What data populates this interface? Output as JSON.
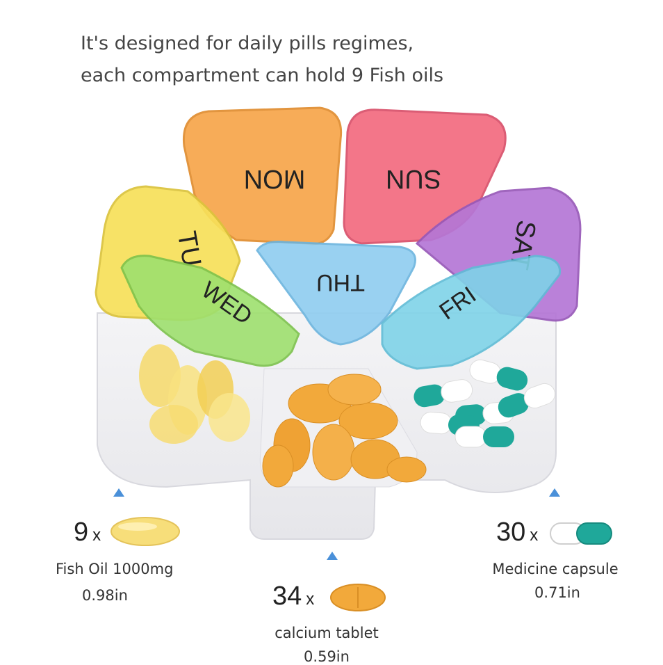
{
  "headline": {
    "line1": "It's designed for daily pills regimes,",
    "line2": "each compartment can hold 9 Fish oils"
  },
  "lids": [
    {
      "day": "MON",
      "color": "#f7a54a"
    },
    {
      "day": "SUN",
      "color": "#f26b7f"
    },
    {
      "day": "SAT",
      "color": "#b577d6"
    },
    {
      "day": "FRI",
      "color": "#7fd3e8"
    },
    {
      "day": "THU",
      "color": "#8fcdf0"
    },
    {
      "day": "WED",
      "color": "#9ee06e"
    },
    {
      "day": "TU",
      "color": "#f7e05a"
    }
  ],
  "items": {
    "fish_oil": {
      "count": "9",
      "multiplier": "x",
      "name": "Fish Oil 1000mg",
      "size": "0.98in",
      "icon": "fish-oil-softgel"
    },
    "calcium": {
      "count": "34",
      "multiplier": "x",
      "name": "calcium tablet",
      "size": "0.59in",
      "icon": "calcium-tablet"
    },
    "capsule": {
      "count": "30",
      "multiplier": "x",
      "name": "Medicine capsule",
      "size": "0.71in",
      "icon": "medicine-capsule"
    }
  },
  "colors": {
    "arrow": "#4a90d9",
    "capsule_teal": "#1fa89a",
    "tablet_orange": "#f2a93b",
    "fish_oil_yellow": "#f7de7a"
  }
}
